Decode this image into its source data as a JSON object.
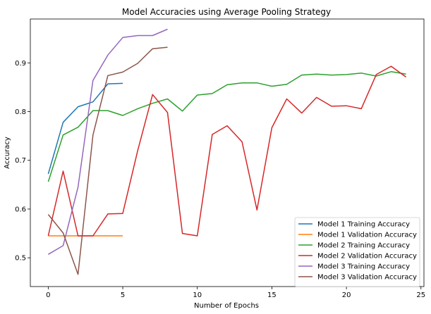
{
  "chart_data": {
    "type": "line",
    "title": "Model Accuracies using Average Pooling Strategy",
    "xlabel": "Number of Epochs",
    "ylabel": "Accuracy",
    "xlim": [
      -1.2,
      25.2
    ],
    "ylim": [
      0.441,
      0.99
    ],
    "xticks": [
      0,
      5,
      10,
      15,
      20,
      25
    ],
    "yticks": [
      0.5,
      0.6,
      0.7,
      0.8,
      0.9
    ],
    "grid": false,
    "legend_position": "lower-right",
    "series": [
      {
        "name": "Model 1 Training Accuracy",
        "color": "#1f77b4",
        "x": [
          0,
          1,
          2,
          3,
          4,
          5
        ],
        "y": [
          0.672,
          0.778,
          0.81,
          0.82,
          0.857,
          0.858
        ]
      },
      {
        "name": "Model 1 Validation Accuracy",
        "color": "#ff7f0e",
        "x": [
          0,
          1,
          2,
          3,
          4,
          5
        ],
        "y": [
          0.545,
          0.545,
          0.545,
          0.545,
          0.545,
          0.545
        ]
      },
      {
        "name": "Model 2 Training Accuracy",
        "color": "#2ca02c",
        "x": [
          0,
          1,
          2,
          3,
          4,
          5,
          6,
          7,
          8,
          9,
          10,
          11,
          12,
          13,
          14,
          15,
          16,
          17,
          18,
          19,
          20,
          21,
          22,
          23,
          24
        ],
        "y": [
          0.656,
          0.752,
          0.768,
          0.802,
          0.802,
          0.792,
          0.806,
          0.817,
          0.826,
          0.801,
          0.834,
          0.837,
          0.855,
          0.859,
          0.859,
          0.852,
          0.856,
          0.875,
          0.877,
          0.875,
          0.876,
          0.879,
          0.873,
          0.882,
          0.877
        ]
      },
      {
        "name": "Model 2 Validation Accuracy",
        "color": "#d62728",
        "x": [
          0,
          1,
          2,
          3,
          4,
          5,
          6,
          7,
          8,
          9,
          10,
          11,
          12,
          13,
          14,
          15,
          16,
          17,
          18,
          19,
          20,
          21,
          22,
          23,
          24
        ],
        "y": [
          0.545,
          0.678,
          0.545,
          0.545,
          0.59,
          0.591,
          0.72,
          0.835,
          0.798,
          0.55,
          0.545,
          0.753,
          0.771,
          0.738,
          0.598,
          0.767,
          0.826,
          0.797,
          0.829,
          0.811,
          0.812,
          0.806,
          0.876,
          0.893,
          0.871
        ]
      },
      {
        "name": "Model 3 Training Accuracy",
        "color": "#9467bd",
        "x": [
          0,
          1,
          2,
          3,
          4,
          5,
          6,
          7,
          8
        ],
        "y": [
          0.507,
          0.525,
          0.645,
          0.864,
          0.916,
          0.952,
          0.956,
          0.956,
          0.969
        ]
      },
      {
        "name": "Model 3 Validation Accuracy",
        "color": "#8c564b",
        "x": [
          0,
          1,
          2,
          3,
          4,
          5,
          6,
          7,
          8
        ],
        "y": [
          0.589,
          0.551,
          0.466,
          0.752,
          0.874,
          0.881,
          0.899,
          0.929,
          0.932
        ]
      }
    ]
  }
}
